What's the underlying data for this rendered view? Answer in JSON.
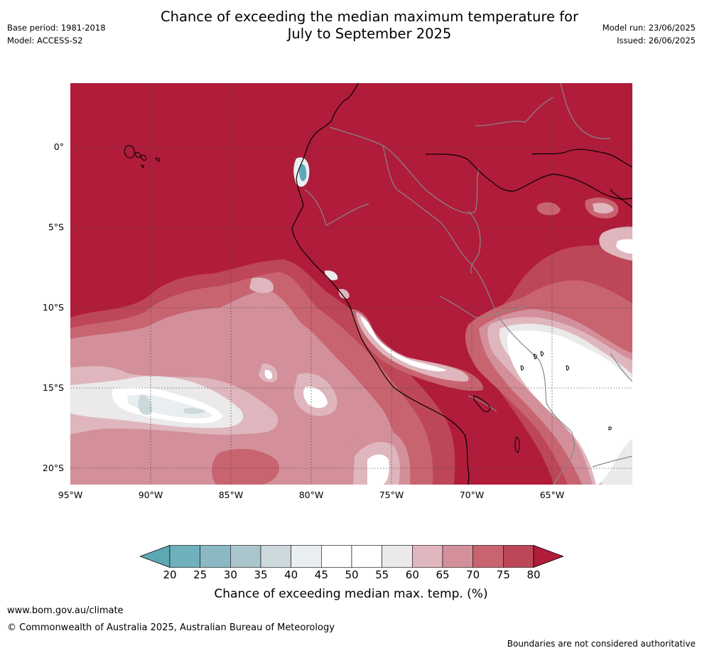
{
  "title_line1": "Chance of exceeding the median maximum temperature for",
  "title_line2": "July to September 2025",
  "meta_left": {
    "base_period": "Base period: 1981-2018",
    "model": "Model: ACCESS-S2"
  },
  "meta_right": {
    "model_run": "Model run: 23/06/2025",
    "issued": "Issued: 26/06/2025"
  },
  "latitude_labels": [
    "0°",
    "5°S",
    "10°S",
    "15°S",
    "20°S"
  ],
  "longitude_labels": [
    "95°W",
    "90°W",
    "85°W",
    "80°W",
    "75°W",
    "70°W",
    "65°W"
  ],
  "colorbar": {
    "ticks": [
      "20",
      "25",
      "30",
      "35",
      "40",
      "45",
      "50",
      "55",
      "60",
      "65",
      "70",
      "75",
      "80"
    ],
    "colors": [
      "#5ea8b6",
      "#6fb0bd",
      "#8ab9c4",
      "#aac6cc",
      "#ccd8dc",
      "#e9eef0",
      "#ffffff",
      "#ffffff",
      "#ebe9e9",
      "#dfb6bd",
      "#d3909a",
      "#c86470",
      "#bd4658",
      "#b01c3a"
    ],
    "label": "Chance of exceeding median max. temp. (%)"
  },
  "footer": {
    "website": "www.bom.gov.au/climate",
    "copyright": "© Commonwealth of Australia 2025, Australian Bureau of Meteorology",
    "disclaimer": "Boundaries are not considered authoritative"
  }
}
